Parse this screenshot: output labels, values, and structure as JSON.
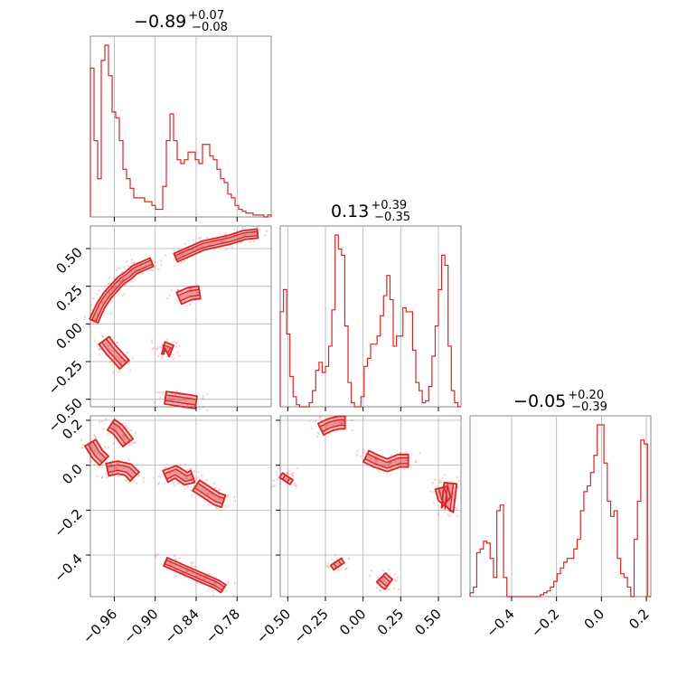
{
  "chart_data": {
    "type": "corner",
    "color": "#d62728",
    "parameters": [
      {
        "title_main": "−0.89",
        "title_plus": "+0.07",
        "title_minus": "−0.08",
        "range": [
          -0.995,
          -0.73
        ],
        "ticks": [
          -0.96,
          -0.9,
          -0.84,
          -0.78
        ],
        "tick_labels": [
          "−0.96",
          "−0.90",
          "−0.84",
          "−0.78"
        ]
      },
      {
        "title_main": "0.13",
        "title_plus": "+0.39",
        "title_minus": "−0.35",
        "range": [
          -0.55,
          0.65
        ],
        "ticks": [
          -0.5,
          -0.25,
          0.0,
          0.25,
          0.5
        ],
        "tick_labels": [
          "−0.50",
          "−0.25",
          "0.00",
          "0.25",
          "0.50"
        ]
      },
      {
        "title_main": "−0.05",
        "title_plus": "+0.20",
        "title_minus": "−0.39",
        "range": [
          -0.585,
          0.22
        ],
        "ticks": [
          -0.4,
          -0.2,
          0.0,
          0.2
        ],
        "tick_labels": [
          "−0.4",
          "−0.2",
          "0.0",
          "0.2"
        ]
      }
    ],
    "histograms": [
      {
        "param": 0,
        "bin_start": -0.995,
        "bin_end": -0.73,
        "counts": [
          0.78,
          0.4,
          0.2,
          0.82,
          0.9,
          0.74,
          0.55,
          0.52,
          0.4,
          0.25,
          0.2,
          0.15,
          0.1,
          0.1,
          0.1,
          0.08,
          0.08,
          0.06,
          0.04,
          0.04,
          0.16,
          0.4,
          0.54,
          0.4,
          0.3,
          0.28,
          0.3,
          0.34,
          0.34,
          0.3,
          0.28,
          0.38,
          0.38,
          0.32,
          0.3,
          0.25,
          0.2,
          0.18,
          0.12,
          0.1,
          0.06,
          0.04,
          0.03,
          0.02,
          0.02,
          0.01,
          0.01,
          0.01,
          0.0,
          0.01
        ]
      },
      {
        "param": 1,
        "bin_start": -0.55,
        "bin_end": 0.65,
        "counts": [
          0.47,
          0.58,
          0.36,
          0.15,
          0.05,
          0.01,
          0.0,
          0.0,
          0.0,
          0.02,
          0.08,
          0.18,
          0.22,
          0.17,
          0.2,
          0.3,
          0.48,
          0.85,
          0.78,
          0.75,
          0.4,
          0.12,
          0.02,
          0.0,
          0.0,
          0.05,
          0.2,
          0.24,
          0.31,
          0.31,
          0.35,
          0.45,
          0.55,
          0.65,
          0.53,
          0.3,
          0.35,
          0.35,
          0.49,
          0.47,
          0.47,
          0.28,
          0.12,
          0.08,
          0.02,
          0.03,
          0.1,
          0.25,
          0.4,
          0.58,
          0.75,
          0.7,
          0.3,
          0.08,
          0.02,
          0.0
        ]
      },
      {
        "param": 2,
        "bin_start": -0.585,
        "bin_end": 0.22,
        "counts": [
          0.02,
          0.05,
          0.23,
          0.25,
          0.29,
          0.28,
          0.2,
          0.1,
          0.45,
          0.48,
          0.1,
          0.0,
          0.0,
          0.0,
          0.0,
          0.0,
          0.0,
          0.0,
          0.0,
          0.0,
          0.0,
          0.01,
          0.02,
          0.03,
          0.05,
          0.08,
          0.12,
          0.15,
          0.18,
          0.2,
          0.2,
          0.25,
          0.3,
          0.45,
          0.55,
          0.58,
          0.65,
          0.74,
          0.9,
          0.9,
          0.7,
          0.5,
          0.42,
          0.45,
          0.2,
          0.12,
          0.1,
          0.05,
          0.0,
          0.3,
          0.5,
          0.82,
          0.8,
          0.0
        ]
      }
    ],
    "contour_clusters": [
      {
        "xi": 0,
        "yi": 1,
        "points": [
          [
            -0.99,
            0.02
          ],
          [
            -0.98,
            0.12
          ],
          [
            -0.97,
            0.19
          ],
          [
            -0.96,
            0.24
          ],
          [
            -0.95,
            0.29
          ],
          [
            -0.94,
            0.32
          ],
          [
            -0.93,
            0.36
          ],
          [
            -0.92,
            0.38
          ],
          [
            -0.905,
            0.41
          ]
        ],
        "kind": "arc"
      },
      {
        "xi": 0,
        "yi": 1,
        "points": [
          [
            -0.87,
            0.44
          ],
          [
            -0.85,
            0.48
          ],
          [
            -0.83,
            0.52
          ],
          [
            -0.81,
            0.54
          ],
          [
            -0.79,
            0.56
          ],
          [
            -0.77,
            0.59
          ],
          [
            -0.75,
            0.6
          ]
        ],
        "kind": "arc"
      },
      {
        "xi": 0,
        "yi": 1,
        "points": [
          [
            -0.865,
            0.17
          ],
          [
            -0.85,
            0.2
          ],
          [
            -0.835,
            0.21
          ]
        ],
        "kind": "blob"
      },
      {
        "xi": 0,
        "yi": 1,
        "points": [
          [
            -0.975,
            -0.11
          ],
          [
            -0.965,
            -0.17
          ],
          [
            -0.955,
            -0.22
          ],
          [
            -0.945,
            -0.27
          ]
        ],
        "kind": "blob"
      },
      {
        "xi": 0,
        "yi": 1,
        "points": [
          [
            -0.888,
            -0.16
          ],
          [
            -0.88,
            -0.17
          ],
          [
            -0.884,
            -0.18
          ]
        ],
        "kind": "blob"
      },
      {
        "xi": 0,
        "yi": 1,
        "points": [
          [
            -0.885,
            -0.49
          ],
          [
            -0.87,
            -0.5
          ],
          [
            -0.855,
            -0.51
          ],
          [
            -0.84,
            -0.52
          ]
        ],
        "kind": "blob"
      },
      {
        "xi": 0,
        "yi": 2,
        "points": [
          [
            -0.995,
            0.1
          ],
          [
            -0.985,
            0.05
          ],
          [
            -0.975,
            0.02
          ]
        ],
        "kind": "blob"
      },
      {
        "xi": 0,
        "yi": 2,
        "points": [
          [
            -0.965,
            0.18
          ],
          [
            -0.955,
            0.16
          ],
          [
            -0.945,
            0.12
          ],
          [
            -0.94,
            0.1
          ]
        ],
        "kind": "blob"
      },
      {
        "xi": 0,
        "yi": 2,
        "points": [
          [
            -0.97,
            -0.02
          ],
          [
            -0.955,
            -0.01
          ],
          [
            -0.94,
            -0.02
          ],
          [
            -0.93,
            -0.05
          ]
        ],
        "kind": "blob"
      },
      {
        "xi": 0,
        "yi": 2,
        "points": [
          [
            -0.885,
            -0.05
          ],
          [
            -0.87,
            -0.03
          ],
          [
            -0.855,
            -0.06
          ],
          [
            -0.845,
            -0.05
          ]
        ],
        "kind": "blob"
      },
      {
        "xi": 0,
        "yi": 2,
        "points": [
          [
            -0.84,
            -0.09
          ],
          [
            -0.83,
            -0.11
          ],
          [
            -0.82,
            -0.13
          ],
          [
            -0.81,
            -0.15
          ],
          [
            -0.8,
            -0.16
          ]
        ],
        "kind": "blob"
      },
      {
        "xi": 0,
        "yi": 2,
        "points": [
          [
            -0.885,
            -0.43
          ],
          [
            -0.87,
            -0.45
          ],
          [
            -0.855,
            -0.47
          ],
          [
            -0.84,
            -0.49
          ],
          [
            -0.825,
            -0.51
          ],
          [
            -0.81,
            -0.53
          ],
          [
            -0.8,
            -0.55
          ]
        ],
        "kind": "arc"
      },
      {
        "xi": 1,
        "yi": 2,
        "points": [
          [
            -0.52,
            -0.07
          ],
          [
            -0.5,
            -0.05
          ]
        ],
        "kind": "blob"
      },
      {
        "xi": 1,
        "yi": 2,
        "points": [
          [
            -0.28,
            0.16
          ],
          [
            -0.22,
            0.18
          ],
          [
            -0.16,
            0.19
          ],
          [
            -0.12,
            0.19
          ]
        ],
        "kind": "blob"
      },
      {
        "xi": 1,
        "yi": 2,
        "points": [
          [
            0.02,
            0.04
          ],
          [
            0.08,
            0.02
          ],
          [
            0.16,
            0.0
          ],
          [
            0.24,
            0.02
          ],
          [
            0.3,
            0.02
          ]
        ],
        "kind": "blob"
      },
      {
        "xi": 1,
        "yi": 2,
        "points": [
          [
            0.52,
            -0.1
          ],
          [
            0.54,
            -0.15
          ],
          [
            0.56,
            -0.2
          ],
          [
            0.58,
            -0.08
          ]
        ],
        "kind": "blob"
      },
      {
        "xi": 1,
        "yi": 2,
        "points": [
          [
            -0.18,
            -0.43
          ],
          [
            -0.16,
            -0.45
          ]
        ],
        "kind": "blob"
      },
      {
        "xi": 1,
        "yi": 2,
        "points": [
          [
            0.12,
            -0.5
          ],
          [
            0.15,
            -0.52
          ],
          [
            0.17,
            -0.53
          ]
        ],
        "kind": "blob"
      }
    ]
  }
}
